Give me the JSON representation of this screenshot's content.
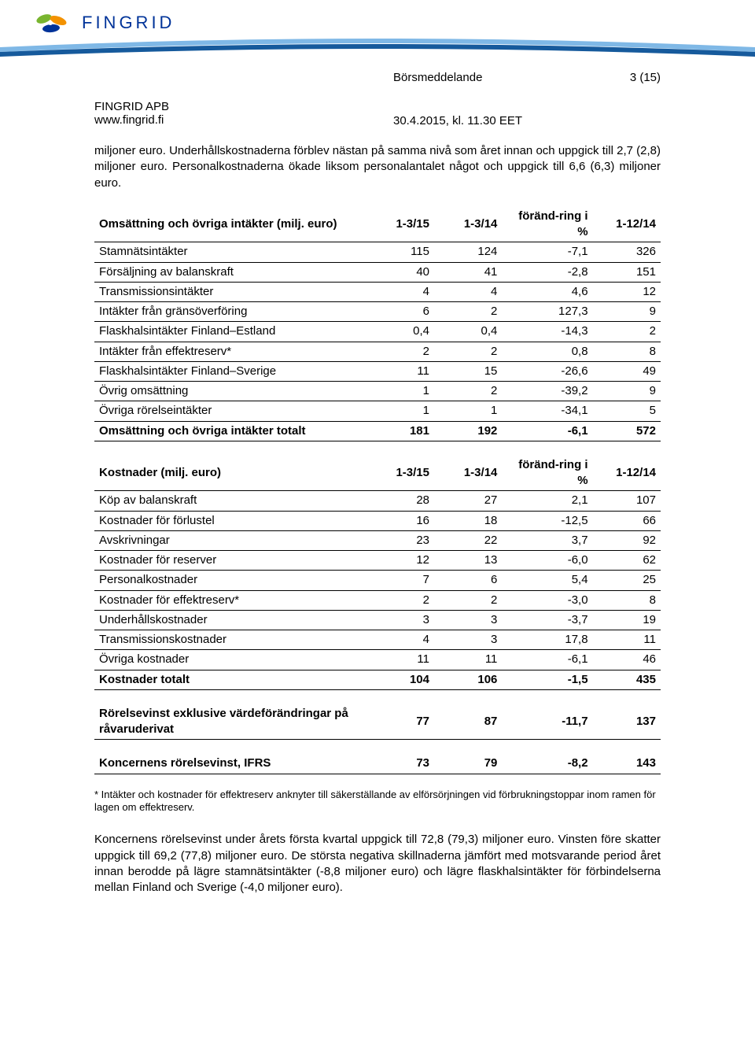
{
  "header": {
    "logo_text": "FINGRID",
    "doc_type": "Börsmeddelande",
    "page": "3 (15)",
    "company": "FINGRID APB",
    "url": "www.fingrid.fi",
    "date": "30.4.2015, kl. 11.30 EET"
  },
  "colors": {
    "brand_blue": "#003399",
    "swoosh_light": "#7fb8e6",
    "swoosh_dark": "#165a9c",
    "logo_green": "#79b52f",
    "logo_orange": "#f39200",
    "logo_blue": "#003399"
  },
  "body": {
    "para1": "miljoner euro. Underhållskostnaderna förblev nästan på samma nivå som året innan och uppgick till 2,7 (2,8) miljoner euro. Personalkostnaderna ökade liksom personalantalet något och uppgick till 6,6 (6,3) miljoner euro.",
    "footnote": "* Intäkter och kostnader för effektreserv anknyter till säkerställande av elförsörjningen vid förbrukningstoppar inom ramen för lagen om effektreserv.",
    "para2": "Koncernens rörelsevinst under årets första kvartal uppgick till 72,8 (79,3) miljoner euro. Vinsten före skatter uppgick till 69,2 (77,8) miljoner euro. De största negativa skillnaderna jämfört med motsvarande period året innan berodde på lägre stamnätsintäkter (-8,8 miljoner euro) och lägre flaskhalsintäkter för förbindelserna mellan Finland och Sverige (-4,0 miljoner euro)."
  },
  "table1": {
    "header": {
      "c1": "Omsättning och övriga intäkter (milj. euro)",
      "c2": "1-3/15",
      "c3": "1-3/14",
      "c4": "föränd-ring i %",
      "c5": "1-12/14"
    },
    "rows": [
      {
        "c1": "Stamnätsintäkter",
        "c2": "115",
        "c3": "124",
        "c4": "-7,1",
        "c5": "326"
      },
      {
        "c1": "Försäljning av balanskraft",
        "c2": "40",
        "c3": "41",
        "c4": "-2,8",
        "c5": "151"
      },
      {
        "c1": "Transmissionsintäkter",
        "c2": "4",
        "c3": "4",
        "c4": "4,6",
        "c5": "12"
      },
      {
        "c1": "Intäkter från gränsöverföring",
        "c2": "6",
        "c3": "2",
        "c4": "127,3",
        "c5": "9"
      },
      {
        "c1": "Flaskhalsintäkter Finland–Estland",
        "c2": "0,4",
        "c3": "0,4",
        "c4": "-14,3",
        "c5": "2"
      },
      {
        "c1": "Intäkter från effektreserv*",
        "c2": "2",
        "c3": "2",
        "c4": "0,8",
        "c5": "8"
      },
      {
        "c1": "Flaskhalsintäkter Finland–Sverige",
        "c2": "11",
        "c3": "15",
        "c4": "-26,6",
        "c5": "49"
      },
      {
        "c1": "Övrig omsättning",
        "c2": "1",
        "c3": "2",
        "c4": "-39,2",
        "c5": "9"
      },
      {
        "c1": "Övriga rörelseintäkter",
        "c2": "1",
        "c3": "1",
        "c4": "-34,1",
        "c5": "5"
      },
      {
        "c1": "Omsättning och övriga intäkter totalt",
        "c2": "181",
        "c3": "192",
        "c4": "-6,1",
        "c5": "572",
        "bold": true
      }
    ]
  },
  "table2": {
    "header": {
      "c1": "Kostnader (milj. euro)",
      "c2": "1-3/15",
      "c3": "1-3/14",
      "c4": "föränd-ring i %",
      "c5": "1-12/14"
    },
    "rows": [
      {
        "c1": "Köp av balanskraft",
        "c2": "28",
        "c3": "27",
        "c4": "2,1",
        "c5": "107"
      },
      {
        "c1": "Kostnader för förlustel",
        "c2": "16",
        "c3": "18",
        "c4": "-12,5",
        "c5": "66"
      },
      {
        "c1": "Avskrivningar",
        "c2": "23",
        "c3": "22",
        "c4": "3,7",
        "c5": "92"
      },
      {
        "c1": "Kostnader för reserver",
        "c2": "12",
        "c3": "13",
        "c4": "-6,0",
        "c5": "62"
      },
      {
        "c1": "Personalkostnader",
        "c2": "7",
        "c3": "6",
        "c4": "5,4",
        "c5": "25"
      },
      {
        "c1": "Kostnader för effektreserv*",
        "c2": "2",
        "c3": "2",
        "c4": "-3,0",
        "c5": "8"
      },
      {
        "c1": "Underhållskostnader",
        "c2": "3",
        "c3": "3",
        "c4": "-3,7",
        "c5": "19"
      },
      {
        "c1": "Transmissionskostnader",
        "c2": "4",
        "c3": "3",
        "c4": "17,8",
        "c5": "11"
      },
      {
        "c1": "Övriga kostnader",
        "c2": "11",
        "c3": "11",
        "c4": "-6,1",
        "c5": "46"
      },
      {
        "c1": "Kostnader totalt",
        "c2": "104",
        "c3": "106",
        "c4": "-1,5",
        "c5": "435",
        "bold": true
      }
    ]
  },
  "table3": {
    "rows": [
      {
        "c1": "Rörelsevinst exklusive värdeförändringar på råvaruderivat",
        "c2": "77",
        "c3": "87",
        "c4": "-11,7",
        "c5": "137",
        "bold": true
      }
    ]
  },
  "table4": {
    "rows": [
      {
        "c1": "Koncernens rörelsevinst, IFRS",
        "c2": "73",
        "c3": "79",
        "c4": "-8,2",
        "c5": "143",
        "bold": true
      }
    ]
  }
}
